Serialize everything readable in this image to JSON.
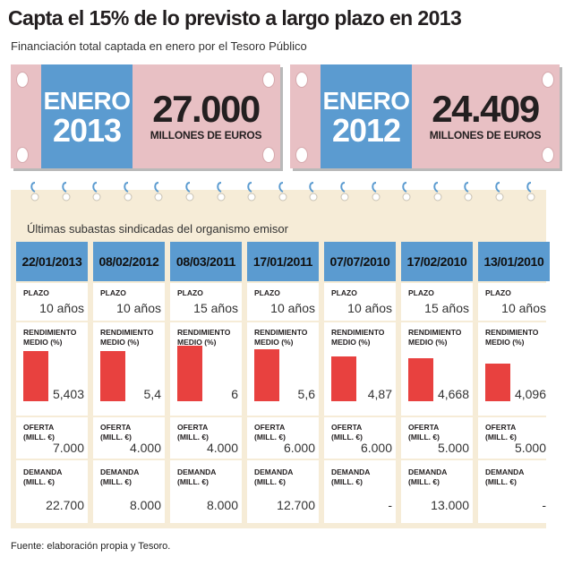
{
  "header": {
    "title": "Capta el 15% de lo previsto a largo plazo en 2013",
    "subtitle": "Financiación total captada en enero por el Tesoro Público"
  },
  "tickets": [
    {
      "label": "ENERO",
      "year": "2013",
      "amount": "27.000",
      "unit": "MILLONES DE EUROS"
    },
    {
      "label": "ENERO",
      "year": "2012",
      "amount": "24.409",
      "unit": "MILLONES DE EUROS"
    }
  ],
  "notebook": {
    "caption": "Últimas subastas sindicadas del organismo emisor",
    "row_labels": {
      "plazo": "PLAZO",
      "rendimiento": "RENDIMIENTO\nMEDIO (%)",
      "oferta": "OFERTA\n(MILL. €)",
      "demanda": "DEMANDA\n(MILL. €)"
    }
  },
  "chart_data": {
    "type": "bar",
    "categories": [
      "22/01/2013",
      "08/02/2012",
      "08/03/2011",
      "17/01/2011",
      "07/07/2010",
      "17/02/2010",
      "13/01/2010"
    ],
    "series": [
      {
        "values": [
          5.403,
          5.4,
          6,
          5.6,
          4.87,
          4.668,
          4.096
        ]
      }
    ],
    "value_labels": [
      "5,403",
      "5,4",
      "6",
      "5,6",
      "4,87",
      "4,668",
      "4,096"
    ],
    "ylabel": "RENDIMIENTO MEDIO (%)",
    "ylim": [
      0,
      6
    ],
    "plazo": [
      "10 años",
      "10 años",
      "15 años",
      "10 años",
      "10 años",
      "15 años",
      "10 años"
    ],
    "oferta": [
      "7.000",
      "4.000",
      "4.000",
      "6.000",
      "6.000",
      "5.000",
      "5.000"
    ],
    "demanda": [
      "22.700",
      "8.000",
      "8.000",
      "12.700",
      "-",
      "13.000",
      "-"
    ],
    "bar_color": "#e8413f"
  },
  "colors": {
    "blue": "#5b9bd0",
    "pink": "#e8c0c4",
    "paper": "#f6ecd7",
    "red": "#e8413f"
  },
  "footer": {
    "source": "Fuente: elaboración propia y Tesoro."
  }
}
